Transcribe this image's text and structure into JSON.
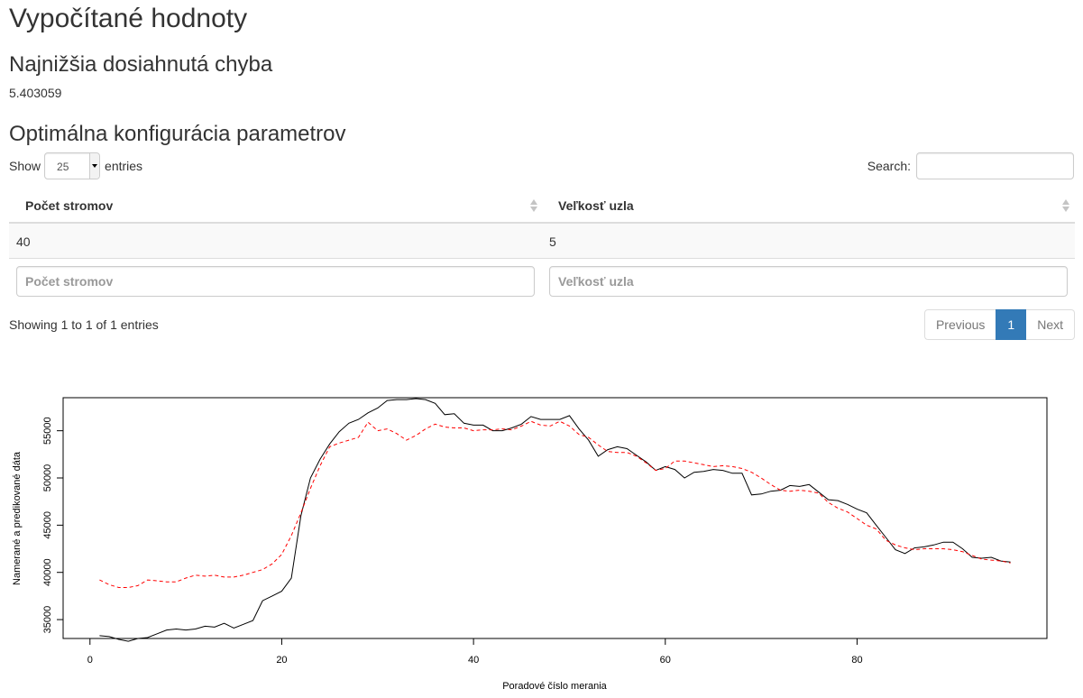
{
  "page": {
    "title": "Vypočítané hodnoty",
    "error_heading": "Najnižšia dosiahnutá chyba",
    "error_value": "5.403059",
    "config_heading": "Optimálna konfigurácia parametrov"
  },
  "table_controls": {
    "show_label": "Show",
    "entries_label": "entries",
    "length_value": "25",
    "search_label": "Search:",
    "search_value": ""
  },
  "table": {
    "columns": [
      "Počet stromov",
      "Veľkosť uzla"
    ],
    "rows": [
      [
        "40",
        "5"
      ]
    ],
    "filter_placeholders": [
      "Počet stromov",
      "Veľkosť uzla"
    ]
  },
  "footer": {
    "info": "Showing 1 to 1 of 1 entries",
    "prev_label": "Previous",
    "current_page": "1",
    "next_label": "Next"
  },
  "chart_data": {
    "type": "line",
    "title": "",
    "xlabel": "Poradové číslo merania",
    "ylabel": "Namerané a predikované dáta",
    "xlim": [
      -2.8,
      99.8
    ],
    "ylim": [
      33000,
      58500
    ],
    "x_ticks": [
      0,
      20,
      40,
      60,
      80
    ],
    "y_ticks": [
      35000,
      40000,
      45000,
      50000,
      55000
    ],
    "series": [
      {
        "style": "solid",
        "color": "#000000",
        "x": [
          1,
          2,
          3,
          4,
          5,
          6,
          7,
          8,
          9,
          10,
          11,
          12,
          13,
          14,
          15,
          16,
          17,
          18,
          19,
          20,
          21,
          22,
          23,
          24,
          25,
          26,
          27,
          28,
          29,
          30,
          31,
          32,
          33,
          34,
          35,
          36,
          37,
          38,
          39,
          40,
          41,
          42,
          43,
          44,
          45,
          46,
          47,
          48,
          49,
          50,
          51,
          52,
          53,
          54,
          55,
          56,
          57,
          58,
          59,
          60,
          61,
          62,
          63,
          64,
          65,
          66,
          67,
          68,
          69,
          70,
          71,
          72,
          73,
          74,
          75,
          76,
          77,
          78,
          79,
          80,
          81,
          82,
          83,
          84,
          85,
          86,
          87,
          88,
          89,
          90,
          91,
          92,
          93,
          94,
          95,
          96
        ],
        "values": [
          33300,
          33200,
          32900,
          32700,
          33000,
          33100,
          33500,
          33900,
          34000,
          33900,
          34000,
          34300,
          34200,
          34600,
          34100,
          34500,
          34900,
          37000,
          37500,
          38000,
          39400,
          46000,
          50000,
          52000,
          53600,
          54900,
          55800,
          56200,
          56900,
          57400,
          58200,
          58300,
          58300,
          58400,
          58300,
          57900,
          56700,
          56800,
          55800,
          55600,
          55600,
          55000,
          55000,
          55300,
          55700,
          56500,
          56200,
          56200,
          56200,
          56600,
          55200,
          54000,
          52300,
          53000,
          53300,
          53100,
          52400,
          51700,
          50800,
          51200,
          50900,
          50000,
          50600,
          50700,
          50900,
          50800,
          50500,
          50500,
          48200,
          48300,
          48600,
          48700,
          49200,
          49100,
          49300,
          48500,
          47700,
          47600,
          47200,
          46700,
          46300,
          45000,
          43700,
          42400,
          42000,
          42600,
          42700,
          42900,
          43200,
          43200,
          42500,
          41600,
          41500,
          41600,
          41200,
          41100
        ]
      },
      {
        "style": "dashed",
        "color": "#ff0000",
        "x": [
          1,
          2,
          3,
          4,
          5,
          6,
          7,
          8,
          9,
          10,
          11,
          12,
          13,
          14,
          15,
          16,
          17,
          18,
          19,
          20,
          21,
          22,
          23,
          24,
          25,
          26,
          27,
          28,
          29,
          30,
          31,
          32,
          33,
          34,
          35,
          36,
          37,
          38,
          39,
          40,
          41,
          42,
          43,
          44,
          45,
          46,
          47,
          48,
          49,
          50,
          51,
          52,
          53,
          54,
          55,
          56,
          57,
          58,
          59,
          60,
          61,
          62,
          63,
          64,
          65,
          66,
          67,
          68,
          69,
          70,
          71,
          72,
          73,
          74,
          75,
          76,
          77,
          78,
          79,
          80,
          81,
          82,
          83,
          84,
          85,
          86,
          87,
          88,
          89,
          90,
          91,
          92,
          93,
          94,
          95,
          96
        ],
        "values": [
          39200,
          38700,
          38400,
          38400,
          38600,
          39200,
          39100,
          39000,
          39000,
          39400,
          39700,
          39600,
          39700,
          39500,
          39500,
          39700,
          40000,
          40300,
          40900,
          41900,
          43900,
          46300,
          48900,
          51300,
          53300,
          53700,
          54000,
          54300,
          55900,
          55000,
          55200,
          54700,
          54000,
          54500,
          55200,
          55700,
          55400,
          55300,
          55300,
          55000,
          55100,
          55100,
          55200,
          55100,
          55500,
          56000,
          55600,
          55500,
          56000,
          55500,
          54600,
          54300,
          53500,
          52800,
          52700,
          52700,
          52300,
          51600,
          50800,
          51000,
          51800,
          51800,
          51600,
          51400,
          51200,
          51300,
          51200,
          51000,
          50600,
          50000,
          49300,
          48700,
          48600,
          48700,
          48600,
          48400,
          47400,
          46800,
          46400,
          45700,
          45000,
          44600,
          43400,
          42900,
          42600,
          42400,
          42500,
          42500,
          42500,
          42400,
          42200,
          41800,
          41400,
          41300,
          41200,
          41000
        ]
      }
    ]
  }
}
